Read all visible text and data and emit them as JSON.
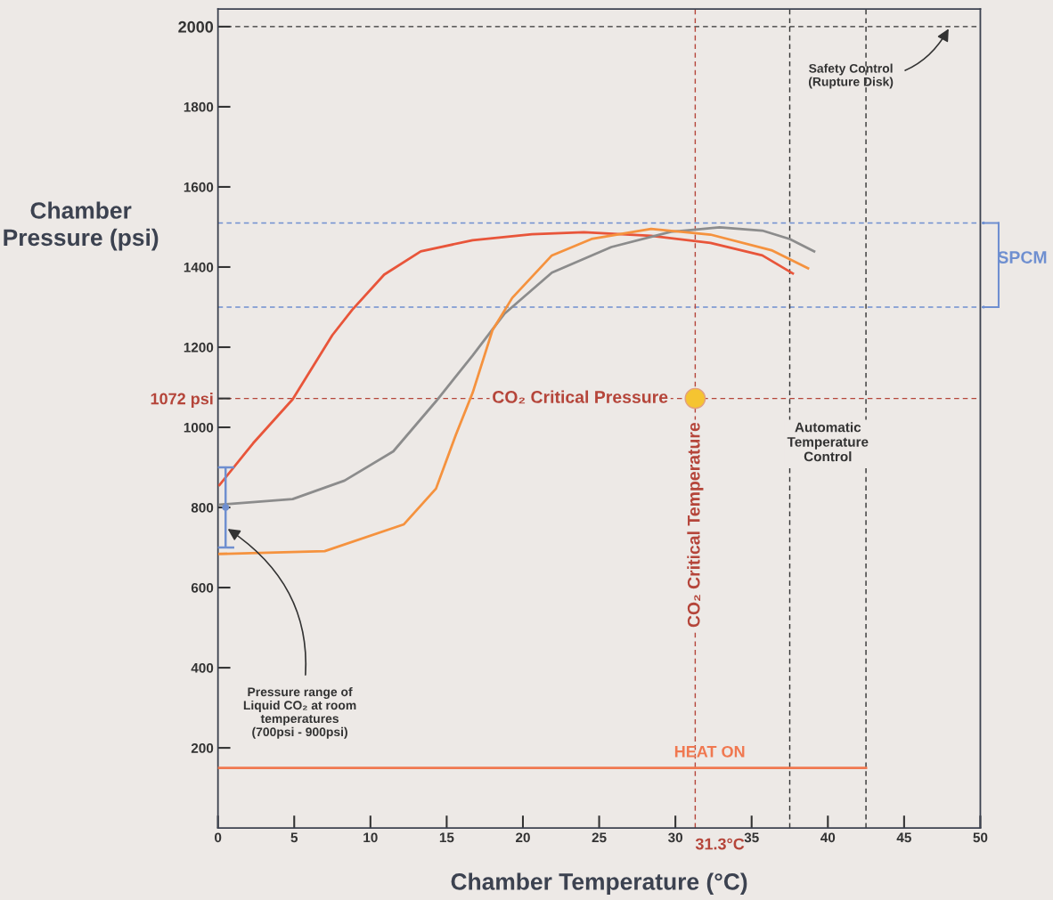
{
  "chart_data": {
    "type": "line",
    "xlabel": "Chamber Temperature (°C)",
    "ylabel": "Chamber Pressure (psi)",
    "xlim": [
      0,
      50
    ],
    "ylim": [
      0,
      2044
    ],
    "xticks": [
      0,
      5,
      10,
      15,
      20,
      25,
      30,
      35,
      40,
      45,
      50
    ],
    "yticks": [
      200,
      400,
      600,
      800,
      1000,
      {
        "value": 1072,
        "label": "1072 psi"
      },
      1200,
      1400,
      1600,
      1800,
      2000
    ],
    "grid": false,
    "line_style": "solid",
    "marker": "none",
    "series": [
      {
        "color": "#e8553a",
        "x": [
          0.1,
          2.3,
          4.9,
          7.5,
          8.8,
          10.9,
          13.3,
          16.7,
          20.6,
          24.0,
          28.4,
          32.3,
          35.7,
          37.7
        ],
        "values": [
          856,
          960,
          1070,
          1230,
          1293,
          1381,
          1439,
          1467,
          1482,
          1487,
          1478,
          1460,
          1429,
          1384
        ]
      },
      {
        "color": "#8c8c8c",
        "x": [
          0.1,
          4.9,
          8.3,
          11.5,
          14.3,
          16.7,
          18.8,
          21.9,
          25.8,
          29.7,
          32.9,
          35.7,
          37.5,
          39.1
        ],
        "values": [
          807,
          821,
          867,
          940,
          1065,
          1179,
          1284,
          1386,
          1450,
          1488,
          1499,
          1491,
          1470,
          1439
        ]
      },
      {
        "color": "#f5923e",
        "x": [
          0.1,
          7.0,
          12.2,
          14.3,
          15.6,
          16.7,
          18.0,
          19.3,
          21.9,
          24.5,
          28.4,
          32.3,
          36.3,
          38.7
        ],
        "values": [
          684,
          691,
          758,
          847,
          981,
          1086,
          1242,
          1323,
          1429,
          1470,
          1495,
          1481,
          1442,
          1397
        ]
      },
      {
        "name": "HEAT ON",
        "color": "#f07850",
        "x": [
          0,
          42.5
        ],
        "values": [
          150,
          150
        ]
      },
      {
        "type": "scatter",
        "color": "#6f8fd0",
        "x": [
          0.5
        ],
        "values": [
          800
        ],
        "errors": [
          [
            700,
            900
          ]
        ],
        "marker": "circle"
      },
      {
        "type": "scatter",
        "color": "#f5c431",
        "x": [
          31.3
        ],
        "values": [
          1072
        ],
        "marker": "circle"
      }
    ],
    "ref_lines": [
      {
        "axis": "y",
        "value": 2000,
        "color": "#333333",
        "line_style": "dashed"
      },
      {
        "axis": "y",
        "value": 1510,
        "color": "#6f8fd0",
        "line_style": "dashed"
      },
      {
        "axis": "y",
        "value": 1300,
        "color": "#6f8fd0",
        "line_style": "dashed"
      },
      {
        "axis": "y",
        "value": 1072,
        "label": "CO₂ Critical Pressure",
        "color": "#b5453a",
        "line_style": "dashed"
      },
      {
        "axis": "x",
        "value": 31.3,
        "label": "31.3°C",
        "color": "#b5453a",
        "line_style": "dashed"
      },
      {
        "axis": "x",
        "value": 37.5,
        "color": "#333333",
        "line_style": "dashed"
      },
      {
        "axis": "x",
        "value": 42.5,
        "color": "#333333",
        "line_style": "dashed"
      }
    ],
    "annotations": [
      {
        "text": "Safety Control\n(Rupture Disk)",
        "x": 48,
        "y": 2000
      },
      {
        "text": "Pressure range of\nLiquid CO₂ at room\ntemperatures\n(700psi - 900psi)",
        "x": 0.5,
        "y": 750
      },
      "CO₂ Critical Temperature",
      "Automatic\nTemperature\nControl",
      "SPCM"
    ]
  }
}
